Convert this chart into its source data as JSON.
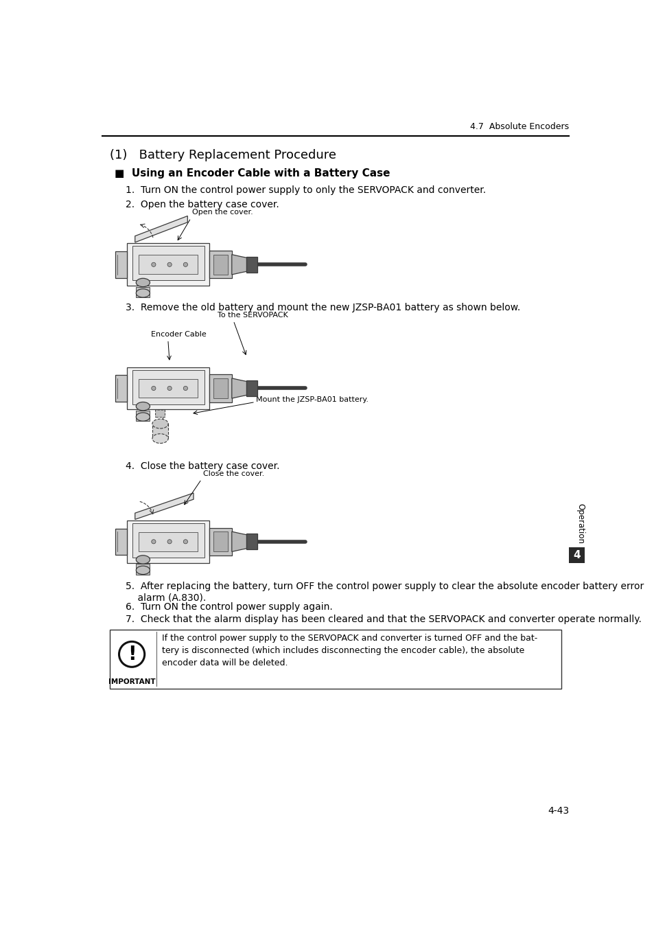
{
  "page_width": 9.54,
  "page_height": 13.5,
  "bg_color": "#ffffff",
  "header_text": "4.7  Absolute Encoders",
  "footer_text": "4-43",
  "sidebar_text": "Operation",
  "sidebar_number": "4",
  "title": "(1)   Battery Replacement Procedure",
  "subtitle": "■  Using an Encoder Cable with a Battery Case",
  "step1": "1.  Turn ON the control power supply to only the SERVOPACK and converter.",
  "step2": "2.  Open the battery case cover.",
  "step3": "3.  Remove the old battery and mount the new JZSP-BA01 battery as shown below.",
  "step4": "4.  Close the battery case cover.",
  "step5": "5.  After replacing the battery, turn OFF the control power supply to clear the absolute encoder battery error\n    alarm (A.830).",
  "step6": "6.  Turn ON the control power supply again.",
  "step7": "7.  Check that the alarm display has been cleared and that the SERVOPACK and converter operate normally.",
  "label_open_cover": "Open the cover.",
  "label_to_servopack": "To the SERVOPACK",
  "label_encoder_cable": "Encoder Cable",
  "label_mount_battery": "Mount the JZSP-BA01 battery.",
  "label_close_cover": "Close the cover.",
  "important_title": "IMPORTANT",
  "important_text": "If the control power supply to the SERVOPACK and converter is turned OFF and the bat-\ntery is disconnected (which includes disconnecting the encoder cable), the absolute\nencoder data will be deleted.",
  "title_fontsize": 13,
  "subtitle_fontsize": 11,
  "step_fontsize": 10,
  "label_fontsize": 8,
  "header_fontsize": 9,
  "footer_fontsize": 10,
  "important_fontsize": 9
}
